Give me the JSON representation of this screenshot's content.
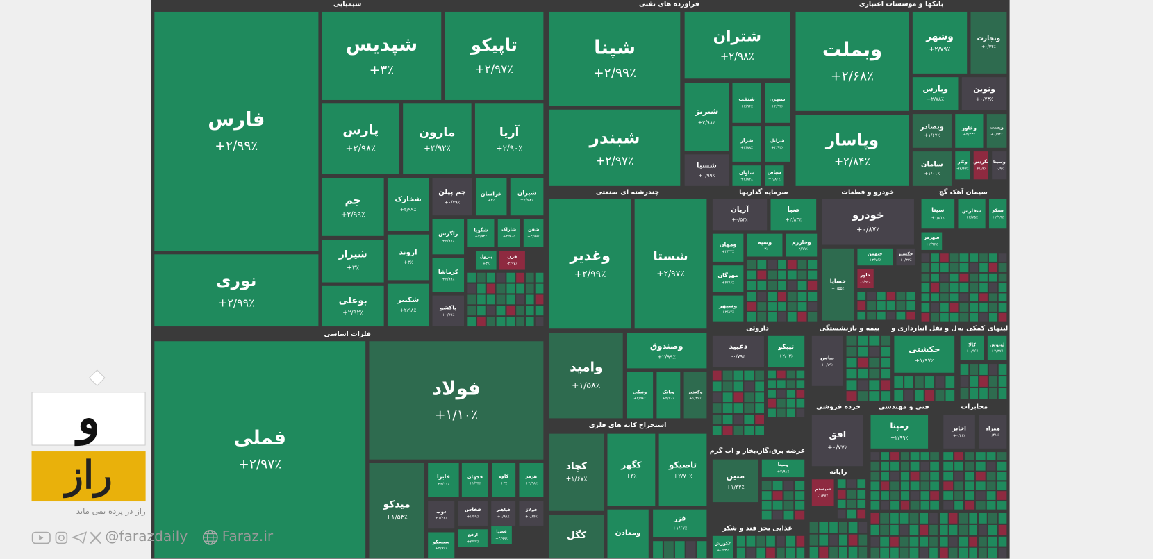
{
  "sectors": [
    {
      "name": "شیمیایی",
      "tiles": [
        {
          "name": "فارس",
          "change": "+۲/۹۹٪"
        },
        {
          "name": "نوری",
          "change": "+۲/۹۹٪"
        },
        {
          "name": "شپدیس",
          "change": "+۳٪"
        },
        {
          "name": "تاپیکو",
          "change": "+۲/۹۷٪"
        },
        {
          "name": "پارس",
          "change": "+۲/۹۸٪"
        },
        {
          "name": "مارون",
          "change": "+۲/۹۲٪"
        },
        {
          "name": "آریا",
          "change": "+۲/۹۰٪"
        },
        {
          "name": "جم",
          "change": "+۲/۹۹٪"
        },
        {
          "name": "شیراز",
          "change": "+۳٪"
        },
        {
          "name": "بوعلی",
          "change": "+۲/۹۲٪"
        },
        {
          "name": "شخارک",
          "change": "+۲/۹۹٪"
        },
        {
          "name": "اروند",
          "change": "+۳٪"
        },
        {
          "name": "شکبیر",
          "change": "+۲/۹۸٪"
        },
        {
          "name": "جم پیلن",
          "change": "+۰/۷۹٪"
        },
        {
          "name": "خراسان",
          "change": "+۳٪"
        },
        {
          "name": "شیران",
          "change": "+۲/۹۸٪"
        },
        {
          "name": "زاگرس",
          "change": "+۲/۹۷٪"
        },
        {
          "name": "شگویا",
          "change": "+۲/۹۲٪"
        },
        {
          "name": "شاراک",
          "change": "+۲/۹۰٪"
        },
        {
          "name": "شفن",
          "change": "+۲/۹۹٪"
        },
        {
          "name": "کرماشا",
          "change": "+۲/۹۹٪"
        },
        {
          "name": "پاکشو",
          "change": "+۰/۷۹٪"
        },
        {
          "name": "پترول",
          "change": "+۳٪"
        },
        {
          "name": "قرن",
          "change": "-۲/۹۷٪"
        }
      ]
    },
    {
      "name": "فلزات اساسی",
      "tiles": [
        {
          "name": "فملی",
          "change": "+۲/۹۷٪"
        },
        {
          "name": "فولاد",
          "change": "+۱/۱۰٪"
        },
        {
          "name": "میدکو",
          "change": "+۱/۵۴٪"
        },
        {
          "name": "فابرا",
          "change": "+۲/۰۱٪"
        },
        {
          "name": "فجهان",
          "change": "+۱/۷۳٪"
        },
        {
          "name": "کاوه",
          "change": "+۳٪"
        },
        {
          "name": "هرمز",
          "change": "+۲/۹۸٪"
        },
        {
          "name": "ذوب",
          "change": "+۱/۳۸٪"
        },
        {
          "name": "فخاس",
          "change": "+۱/۴۹٪"
        },
        {
          "name": "فباهنر",
          "change": "+۱/۹۸٪"
        },
        {
          "name": "فولاژ",
          "change": "+۰/۶۴٪"
        },
        {
          "name": "ارفع",
          "change": "+۲/۷۷٪"
        },
        {
          "name": "فصبا",
          "change": "+۲/۹۹٪"
        },
        {
          "name": "سیسکو",
          "change": "+۲/۹۹٪"
        }
      ]
    },
    {
      "name": "فراورده های نفتی",
      "tiles": [
        {
          "name": "شپنا",
          "change": "+۲/۹۹٪"
        },
        {
          "name": "شبندر",
          "change": "+۲/۹۷٪"
        },
        {
          "name": "شتران",
          "change": "+۲/۹۸٪"
        },
        {
          "name": "شبریز",
          "change": "+۲/۹۸٪"
        },
        {
          "name": "شسپا",
          "change": "+۰/۹۹٪"
        },
        {
          "name": "شنفت",
          "change": "+۲/۹۶٪"
        },
        {
          "name": "شبهرن",
          "change": "+۲/۹۳٪"
        },
        {
          "name": "شراز",
          "change": "+۲/۸۸٪"
        },
        {
          "name": "شرانل",
          "change": "+۲/۹۳٪"
        },
        {
          "name": "شاوان",
          "change": "+۲/۸۳٪"
        },
        {
          "name": "شپاس",
          "change": "+۲/۸۰٪"
        }
      ]
    },
    {
      "name": "بانکها و موسسات اعتباری",
      "tiles": [
        {
          "name": "وبملت",
          "change": "+۲/۶۸٪"
        },
        {
          "name": "وپاسار",
          "change": "+۲/۸۴٪"
        },
        {
          "name": "وشهر",
          "change": "+۲/۷۹٪"
        },
        {
          "name": "وتجارت",
          "change": "+۰/۳۴٪"
        },
        {
          "name": "وپارس",
          "change": "+۲/۷۸٪"
        },
        {
          "name": "ونوین",
          "change": "+۰/۷۳٪"
        },
        {
          "name": "وبصادر",
          "change": "+۱/۶۷٪"
        },
        {
          "name": "وخاور",
          "change": "+۲/۴۳٪"
        },
        {
          "name": "ویست",
          "change": "+۰/۵۴٪"
        },
        {
          "name": "سامان",
          "change": "+۱/۰۱٪"
        },
        {
          "name": "وکار",
          "change": "+۲/۴۳٪"
        },
        {
          "name": "بگردش",
          "change": "-۲/۸۳٪"
        },
        {
          "name": "وسینا",
          "change": "-۰/۹٪"
        }
      ]
    },
    {
      "name": "چندرشته ای صنعتی",
      "tiles": [
        {
          "name": "وغدیر",
          "change": "+۲/۹۹٪"
        },
        {
          "name": "شستا",
          "change": "+۲/۹۷٪"
        },
        {
          "name": "وامید",
          "change": "+۱/۵۸٪"
        },
        {
          "name": "وصندوق",
          "change": "+۲/۹۹٪"
        },
        {
          "name": "ونیکی",
          "change": "+۲/۵۶٪"
        },
        {
          "name": "وبانک",
          "change": "+۲/۷۰٪"
        },
        {
          "name": "وکغدیر",
          "change": "+۱/۳۹٪"
        }
      ]
    },
    {
      "name": "استخراج کانه های فلزی",
      "tiles": [
        {
          "name": "کچاد",
          "change": "+۱/۶۷٪"
        },
        {
          "name": "کگهر",
          "change": "+۳٪"
        },
        {
          "name": "تاصیکو",
          "change": "+۲/۷۰٪"
        },
        {
          "name": "کگل"
        },
        {
          "name": "ومعادن"
        },
        {
          "name": "فزر",
          "change": "+۱/۶۷٪"
        }
      ]
    },
    {
      "name": "سرمایه گذاریها",
      "tiles": [
        {
          "name": "آریان",
          "change": "+۰/۵۳٪"
        },
        {
          "name": "صبا",
          "change": "+۲/۸۳٪"
        },
        {
          "name": "ومهان",
          "change": "+۲/۳۳٪"
        },
        {
          "name": "وسپه",
          "change": "+۳٪"
        },
        {
          "name": "وخارزم",
          "change": "+۲/۹۹٪"
        },
        {
          "name": "مهرگان",
          "change": "+۲/۷۶٪"
        },
        {
          "name": "وسپهر",
          "change": "+۲/۸۴٪"
        }
      ]
    },
    {
      "name": "خودرو و قطعات",
      "tiles": [
        {
          "name": "خودرو",
          "change": "+۰/۸۷٪"
        },
        {
          "name": "خساپا",
          "change": "+۰/۵۵٪"
        },
        {
          "name": "خبهمن",
          "change": "+۲/۷۶٪"
        },
        {
          "name": "خکستر",
          "change": "+۰/۳۳٪"
        },
        {
          "name": "خاور",
          "change": "-۰/۹۷٪"
        }
      ]
    },
    {
      "name": "سیمان آهک گچ",
      "tiles": [
        {
          "name": "سیتا",
          "change": "+۰/۵۱٪"
        },
        {
          "name": "سفارس",
          "change": "+۲/۷۵٪"
        },
        {
          "name": "سیکو",
          "change": "+۲/۹۹٪"
        },
        {
          "name": "سهرمز",
          "change": "+۲/۹۶٪"
        }
      ]
    },
    {
      "name": "داروئی",
      "tiles": [
        {
          "name": "دعبید",
          "change": "-۰/۷۹٪"
        },
        {
          "name": "تیپکو",
          "change": "+۲/۰۳٪"
        }
      ]
    },
    {
      "name": "بیمه و بازنشستگی",
      "tiles": [
        {
          "name": "بپاس",
          "change": "+۰/۷۹٪"
        }
      ]
    },
    {
      "name": "حمل و نقل انبارداری و",
      "tiles": [
        {
          "name": "حکشتی",
          "change": "+۱/۹۷٪"
        }
      ]
    },
    {
      "name": "فعالیتهای کمکی به",
      "tiles": [
        {
          "name": "کالا",
          "change": "+۱/۹۶٪"
        },
        {
          "name": "لوتوس",
          "change": "+۲/۳۷٪"
        }
      ]
    },
    {
      "name": "خرده فروشی",
      "tiles": [
        {
          "name": "افق",
          "change": "+۰/۷۷٪"
        }
      ]
    },
    {
      "name": "فنی و مهندسی",
      "tiles": [
        {
          "name": "رمپنا",
          "change": "+۲/۹۹٪"
        }
      ]
    },
    {
      "name": "مخابرات",
      "tiles": [
        {
          "name": "اخابر",
          "change": "+۰/۴۶٪"
        },
        {
          "name": "همراه",
          "change": "+۰/۴۱٪"
        }
      ]
    },
    {
      "name": "عرضه برق،گاز،بخار و آب گرم",
      "tiles": [
        {
          "name": "مبین",
          "change": "+۱/۳۲٪"
        },
        {
          "name": "ومپنا",
          "change": "+۲/۹۱٪"
        }
      ]
    },
    {
      "name": "رایانه",
      "tiles": [
        {
          "name": "سیستم",
          "change": "-۱/۳۷٪"
        }
      ]
    },
    {
      "name": "غذایی بجز قند و شکر",
      "tiles": [
        {
          "name": "غکورش",
          "change": "+۰/۳۳٪"
        }
      ]
    }
  ],
  "brand": {
    "logo_top": "و",
    "logo_bottom": "راز",
    "slogan": "راز در پرده نمی ماند",
    "social": "@farazdaily",
    "site": "Faraz.ir"
  }
}
